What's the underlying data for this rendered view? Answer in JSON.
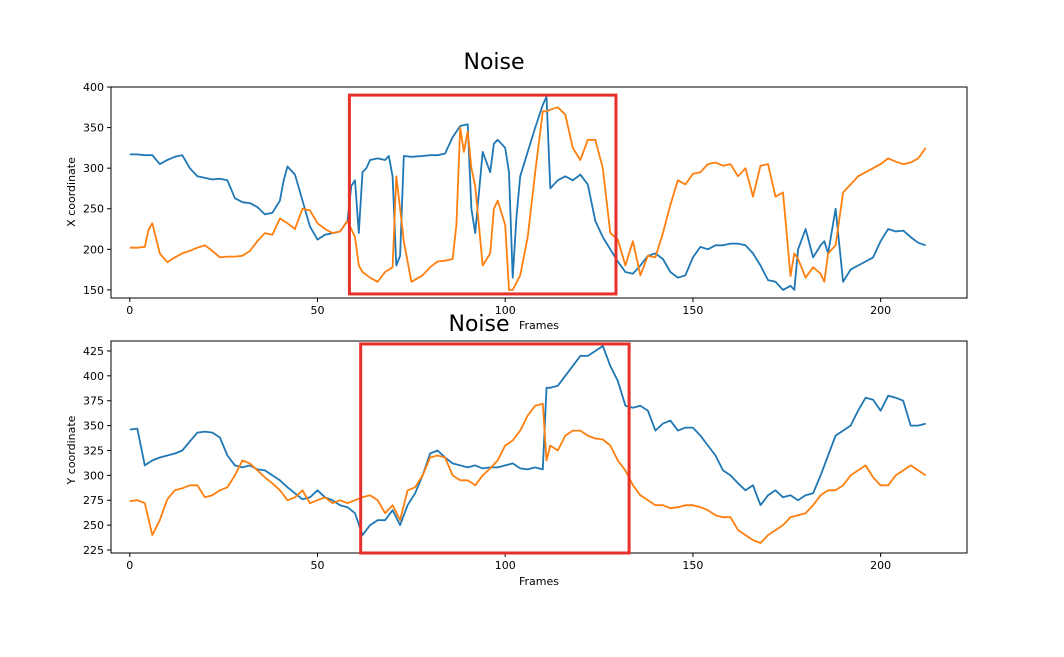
{
  "chart_data": [
    {
      "type": "line",
      "title": "Noise",
      "xlabel": "Frames",
      "ylabel": "X coordinate",
      "xlim": [
        -5,
        223
      ],
      "ylim": [
        140,
        400
      ],
      "xticks": [
        0,
        50,
        100,
        150,
        200
      ],
      "yticks": [
        150,
        200,
        250,
        300,
        350,
        400
      ],
      "grid": false,
      "series": [
        {
          "color": "#1f77b4",
          "x": [
            0,
            2,
            4,
            6,
            8,
            10,
            12,
            14,
            16,
            18,
            20,
            22,
            24,
            26,
            28,
            30,
            32,
            34,
            36,
            38,
            40,
            41,
            42,
            44,
            46,
            48,
            50,
            52,
            54,
            56,
            58,
            59,
            60,
            61,
            62,
            63,
            64,
            66,
            68,
            69,
            70,
            71,
            72,
            73,
            75,
            78,
            80,
            82,
            84,
            86,
            88,
            90,
            91,
            92,
            94,
            96,
            97,
            98,
            100,
            101,
            102,
            103,
            104,
            106,
            108,
            110,
            111,
            112,
            114,
            116,
            118,
            120,
            122,
            124,
            126,
            128,
            130,
            132,
            134,
            136,
            138,
            140,
            142,
            144,
            146,
            148,
            150,
            152,
            154,
            156,
            158,
            160,
            162,
            164,
            166,
            168,
            170,
            172,
            174,
            176,
            177,
            178,
            180,
            182,
            184,
            185,
            186,
            188,
            190,
            192,
            194,
            196,
            198,
            200,
            202,
            204,
            206,
            208,
            210,
            212
          ],
          "y": [
            317,
            317,
            316,
            316,
            305,
            310,
            314,
            316,
            300,
            290,
            288,
            286,
            287,
            285,
            263,
            258,
            257,
            252,
            243,
            245,
            260,
            285,
            302,
            292,
            260,
            228,
            212,
            218,
            220,
            222,
            235,
            278,
            285,
            220,
            295,
            300,
            310,
            312,
            310,
            315,
            290,
            180,
            192,
            315,
            314,
            315,
            316,
            316,
            318,
            338,
            352,
            354,
            250,
            220,
            320,
            295,
            330,
            335,
            325,
            295,
            165,
            240,
            290,
            320,
            350,
            378,
            388,
            275,
            285,
            290,
            285,
            292,
            280,
            235,
            215,
            200,
            185,
            172,
            170,
            180,
            192,
            195,
            188,
            172,
            165,
            168,
            190,
            203,
            200,
            205,
            205,
            207,
            207,
            205,
            195,
            180,
            162,
            160,
            150,
            155,
            150,
            200,
            225,
            190,
            205,
            210,
            195,
            250,
            160,
            175,
            180,
            185,
            190,
            210,
            225,
            222,
            223,
            215,
            208,
            205
          ]
        },
        {
          "color": "#ff7f0e",
          "x": [
            0,
            2,
            4,
            5,
            6,
            8,
            10,
            12,
            14,
            16,
            18,
            20,
            22,
            24,
            26,
            28,
            30,
            32,
            34,
            36,
            38,
            40,
            42,
            44,
            46,
            48,
            50,
            52,
            54,
            56,
            58,
            60,
            61,
            62,
            64,
            66,
            68,
            70,
            71,
            72,
            73,
            75,
            78,
            80,
            82,
            84,
            86,
            87,
            88,
            89,
            90,
            91,
            92,
            94,
            96,
            97,
            98,
            100,
            101,
            102,
            104,
            106,
            108,
            110,
            111,
            112,
            114,
            116,
            118,
            120,
            122,
            124,
            126,
            128,
            130,
            132,
            134,
            136,
            138,
            140,
            142,
            144,
            146,
            148,
            150,
            152,
            154,
            156,
            158,
            160,
            162,
            164,
            166,
            168,
            170,
            172,
            174,
            176,
            177,
            178,
            180,
            182,
            184,
            185,
            186,
            188,
            190,
            192,
            194,
            196,
            198,
            200,
            202,
            204,
            206,
            208,
            210,
            212
          ],
          "y": [
            202,
            202,
            203,
            224,
            232,
            195,
            184,
            190,
            195,
            198,
            202,
            205,
            198,
            190,
            191,
            191,
            192,
            198,
            210,
            220,
            218,
            238,
            232,
            225,
            250,
            248,
            232,
            225,
            220,
            222,
            235,
            215,
            180,
            172,
            165,
            160,
            172,
            178,
            290,
            250,
            210,
            160,
            168,
            178,
            185,
            186,
            188,
            230,
            350,
            320,
            345,
            300,
            278,
            180,
            195,
            250,
            260,
            230,
            150,
            150,
            168,
            215,
            295,
            370,
            370,
            372,
            375,
            366,
            325,
            310,
            335,
            335,
            300,
            220,
            212,
            180,
            210,
            168,
            192,
            190,
            220,
            255,
            285,
            280,
            293,
            295,
            305,
            307,
            303,
            305,
            290,
            300,
            265,
            303,
            305,
            265,
            270,
            167,
            195,
            188,
            165,
            178,
            170,
            160,
            195,
            205,
            270,
            280,
            290,
            295,
            300,
            305,
            312,
            308,
            305,
            307,
            312,
            325
          ]
        }
      ],
      "annotations": [
        {
          "type": "rectangle",
          "color": "#e8302a",
          "x_range": [
            58.5,
            129.5
          ],
          "y_range": [
            145,
            390
          ]
        }
      ]
    },
    {
      "type": "line",
      "title": "Noise",
      "xlabel": "Frames",
      "ylabel": "Y coordinate",
      "xlim": [
        -5,
        223
      ],
      "ylim": [
        222,
        435
      ],
      "xticks": [
        0,
        50,
        100,
        150,
        200
      ],
      "yticks": [
        225,
        250,
        275,
        300,
        325,
        350,
        375,
        400,
        425
      ],
      "grid": false,
      "series": [
        {
          "color": "#1f77b4",
          "x": [
            0,
            2,
            4,
            6,
            8,
            10,
            12,
            14,
            16,
            18,
            20,
            22,
            24,
            26,
            28,
            30,
            32,
            34,
            36,
            38,
            40,
            42,
            44,
            46,
            48,
            50,
            52,
            54,
            56,
            58,
            60,
            62,
            64,
            66,
            68,
            70,
            72,
            74,
            76,
            78,
            80,
            82,
            84,
            86,
            88,
            90,
            92,
            94,
            96,
            98,
            100,
            102,
            104,
            106,
            108,
            110,
            111,
            112,
            114,
            116,
            118,
            120,
            122,
            124,
            126,
            128,
            130,
            132,
            134,
            136,
            138,
            140,
            142,
            144,
            146,
            148,
            150,
            152,
            154,
            156,
            158,
            160,
            162,
            164,
            166,
            168,
            170,
            172,
            174,
            176,
            178,
            180,
            182,
            184,
            186,
            188,
            190,
            192,
            194,
            196,
            198,
            200,
            202,
            204,
            206,
            208,
            210,
            212
          ],
          "y": [
            346,
            347,
            310,
            315,
            318,
            320,
            322,
            325,
            334,
            343,
            344,
            343,
            338,
            320,
            310,
            308,
            310,
            306,
            305,
            300,
            295,
            288,
            282,
            276,
            278,
            285,
            278,
            275,
            270,
            268,
            262,
            240,
            250,
            255,
            255,
            265,
            250,
            270,
            282,
            300,
            322,
            325,
            318,
            312,
            310,
            308,
            310,
            307,
            308,
            308,
            310,
            312,
            307,
            306,
            308,
            306,
            388,
            388,
            390,
            400,
            410,
            420,
            420,
            425,
            430,
            410,
            395,
            370,
            368,
            370,
            365,
            345,
            352,
            355,
            345,
            348,
            348,
            340,
            330,
            320,
            305,
            300,
            292,
            285,
            290,
            270,
            280,
            285,
            278,
            280,
            275,
            280,
            282,
            300,
            320,
            340,
            345,
            350,
            365,
            378,
            376,
            365,
            380,
            378,
            375,
            350,
            350,
            352
          ]
        },
        {
          "color": "#ff7f0e",
          "x": [
            0,
            2,
            4,
            6,
            8,
            10,
            12,
            14,
            16,
            18,
            20,
            22,
            24,
            26,
            28,
            30,
            32,
            34,
            36,
            38,
            40,
            42,
            44,
            46,
            48,
            50,
            52,
            54,
            56,
            58,
            60,
            62,
            64,
            66,
            68,
            70,
            72,
            74,
            76,
            78,
            80,
            82,
            84,
            86,
            88,
            90,
            92,
            94,
            96,
            98,
            100,
            102,
            104,
            106,
            108,
            110,
            111,
            112,
            114,
            116,
            118,
            120,
            122,
            124,
            126,
            128,
            130,
            132,
            134,
            136,
            138,
            140,
            142,
            144,
            146,
            148,
            150,
            152,
            154,
            156,
            158,
            160,
            162,
            164,
            166,
            168,
            170,
            172,
            174,
            176,
            178,
            180,
            182,
            184,
            186,
            188,
            190,
            192,
            194,
            196,
            198,
            200,
            202,
            204,
            206,
            208,
            210,
            212
          ],
          "y": [
            274,
            275,
            272,
            240,
            255,
            276,
            285,
            287,
            290,
            290,
            278,
            280,
            285,
            288,
            300,
            315,
            312,
            305,
            298,
            292,
            285,
            275,
            278,
            285,
            272,
            275,
            278,
            272,
            275,
            272,
            275,
            278,
            280,
            275,
            262,
            270,
            255,
            285,
            288,
            300,
            318,
            320,
            318,
            300,
            295,
            295,
            290,
            300,
            307,
            315,
            330,
            335,
            345,
            360,
            370,
            372,
            315,
            330,
            325,
            340,
            345,
            345,
            340,
            337,
            336,
            330,
            315,
            305,
            290,
            280,
            275,
            270,
            270,
            267,
            268,
            270,
            270,
            268,
            265,
            260,
            258,
            258,
            245,
            240,
            235,
            232,
            240,
            245,
            250,
            258,
            260,
            262,
            270,
            280,
            285,
            285,
            290,
            300,
            305,
            310,
            298,
            290,
            290,
            300,
            305,
            310,
            305,
            300
          ]
        }
      ],
      "annotations": [
        {
          "type": "rectangle",
          "color": "#e8302a",
          "x_range": [
            61.5,
            133
          ],
          "y_range": [
            222,
            432
          ]
        }
      ]
    }
  ]
}
